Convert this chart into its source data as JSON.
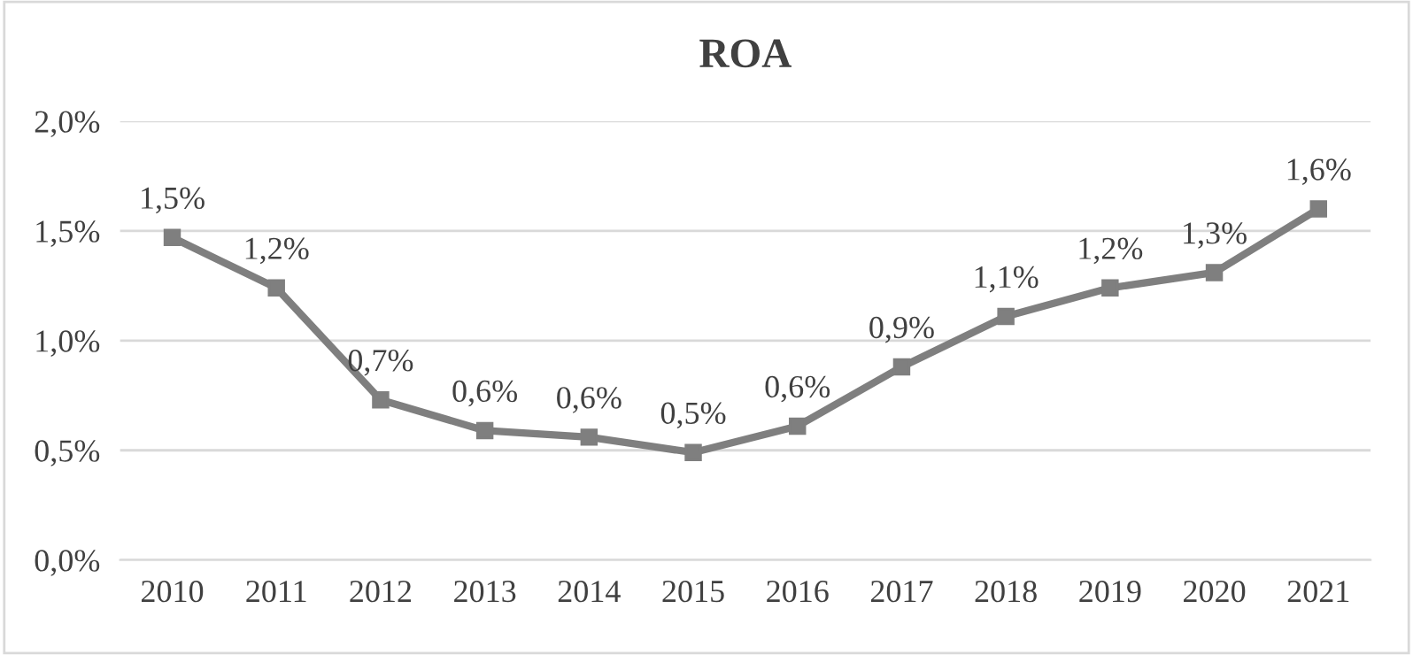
{
  "chart_data": {
    "type": "line",
    "title": "ROA",
    "categories": [
      "2010",
      "2011",
      "2012",
      "2013",
      "2014",
      "2015",
      "2016",
      "2017",
      "2018",
      "2019",
      "2020",
      "2021"
    ],
    "series": [
      {
        "color": "#7f7f7f",
        "values": [
          1.47,
          1.24,
          0.73,
          0.59,
          0.56,
          0.49,
          0.61,
          0.88,
          1.11,
          1.24,
          1.31,
          1.6
        ],
        "value_labels": [
          "1,5%",
          "1,2%",
          "0,7%",
          "0,6%",
          "0,6%",
          "0,5%",
          "0,6%",
          "0,9%",
          "1,1%",
          "1,2%",
          "1,3%",
          "1,6%"
        ]
      }
    ],
    "ylim": [
      0,
      2
    ],
    "yticks": [
      {
        "value": 0,
        "label": "0,0%"
      },
      {
        "value": 0.5,
        "label": "0,5%"
      },
      {
        "value": 1,
        "label": "1,0%"
      },
      {
        "value": 1.5,
        "label": "1,5%"
      },
      {
        "value": 2,
        "label": "2,0%"
      }
    ],
    "grid": "y",
    "marker": "square",
    "line_style": "solid",
    "legend": false
  }
}
